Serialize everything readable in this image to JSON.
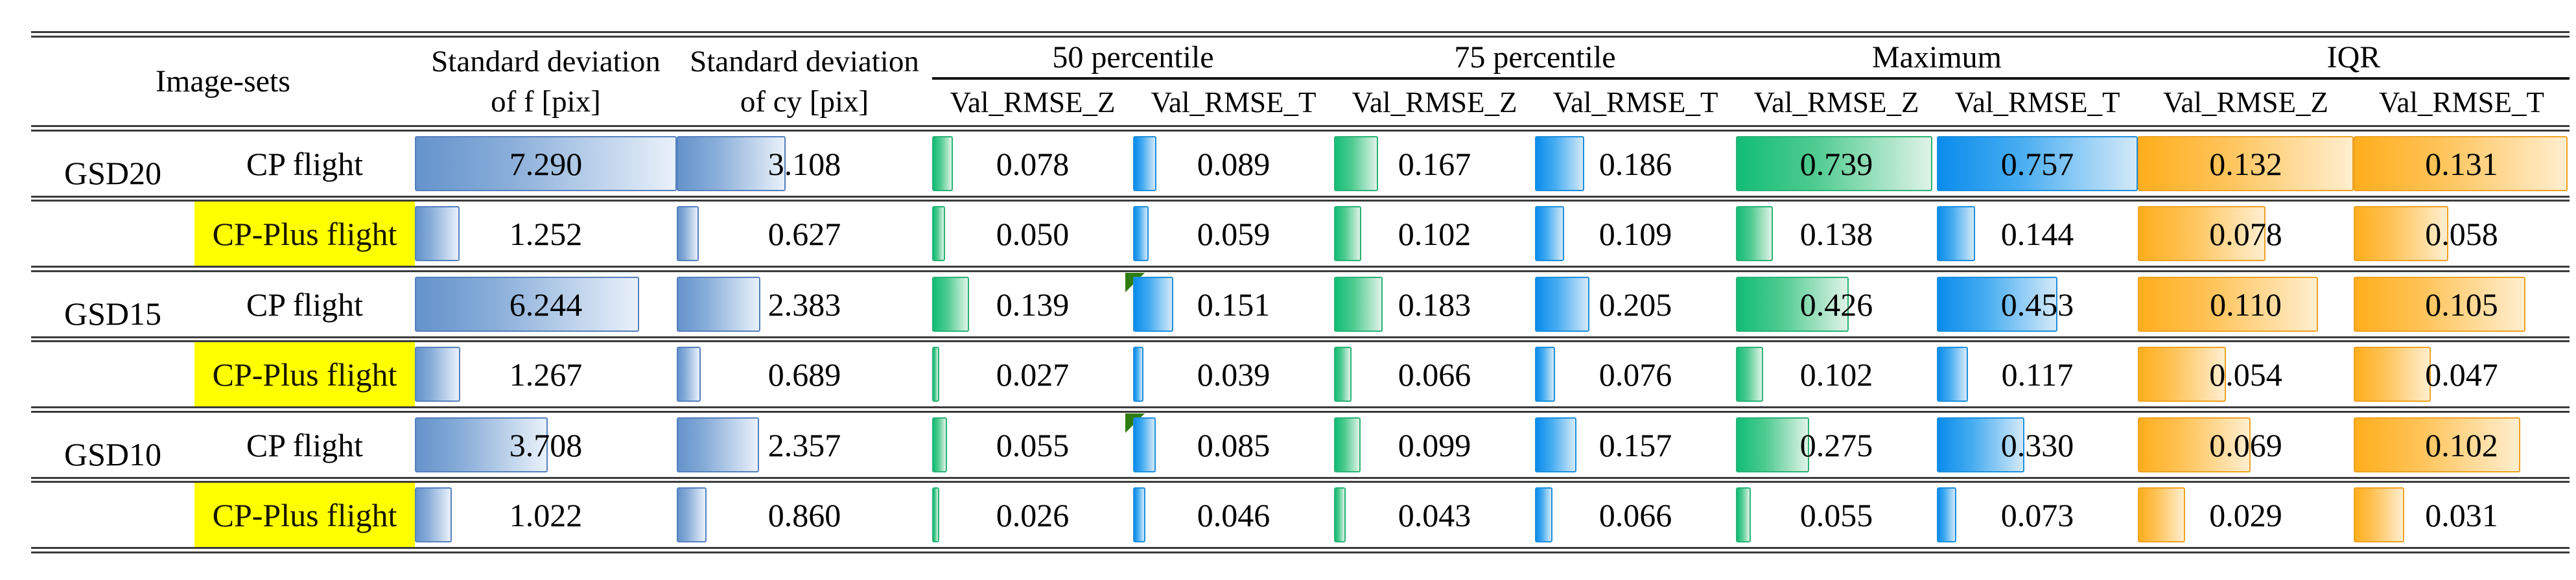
{
  "header": {
    "image_sets": "Image-sets",
    "std_f_line1": "Standard deviation",
    "std_f_line2": "of f [pix]",
    "std_cy_line1": "Standard deviation",
    "std_cy_line2": "of cy [pix]",
    "groups": [
      {
        "label": "50 percentile",
        "sub": [
          "Val_RMSE_Z",
          "Val_RMSE_T"
        ]
      },
      {
        "label": "75 percentile",
        "sub": [
          "Val_RMSE_Z",
          "Val_RMSE_T"
        ]
      },
      {
        "label": "Maximum",
        "sub": [
          "Val_RMSE_Z",
          "Val_RMSE_T"
        ]
      },
      {
        "label": "IQR",
        "sub": [
          "Val_RMSE_Z",
          "Val_RMSE_T"
        ]
      }
    ]
  },
  "colors": {
    "highlight_yellow": "#FFFF00",
    "bar_std_blue": "#6493CB",
    "bar_rmse_z_green": "#12BD77",
    "bar_rmse_t_blue": "#0A8CEC",
    "bar_iqr_orange": "#FFAE1C",
    "error_flag_green": "#2E7D0C",
    "rule_gray": "#3B3B3B"
  },
  "chart_data": {
    "type": "table",
    "column_groups": [
      "Standard deviation of f [pix]",
      "Standard deviation of cy [pix]",
      "50 percentile",
      "75 percentile",
      "Maximum",
      "IQR"
    ],
    "columns": [
      "std_f",
      "std_cy",
      "p50_val_rmse_z",
      "p50_val_rmse_t",
      "p75_val_rmse_z",
      "p75_val_rmse_t",
      "max_val_rmse_z",
      "max_val_rmse_t",
      "iqr_val_rmse_z",
      "iqr_val_rmse_t"
    ],
    "bar_scale_max": {
      "std": 7.29,
      "rmse": 0.757,
      "iqr": 0.132
    },
    "rows": [
      {
        "image_set": "GSD20",
        "flight": "CP flight",
        "highlighted": false,
        "error_flags": [],
        "values": [
          "7.290",
          "3.108",
          "0.078",
          "0.089",
          "0.167",
          "0.186",
          "0.739",
          "0.757",
          "0.132",
          "0.131"
        ]
      },
      {
        "image_set": "",
        "flight": "CP-Plus flight",
        "highlighted": true,
        "error_flags": [],
        "values": [
          "1.252",
          "0.627",
          "0.050",
          "0.059",
          "0.102",
          "0.109",
          "0.138",
          "0.144",
          "0.078",
          "0.058"
        ]
      },
      {
        "image_set": "GSD15",
        "flight": "CP flight",
        "highlighted": false,
        "error_flags": [
          3
        ],
        "values": [
          "6.244",
          "2.383",
          "0.139",
          "0.151",
          "0.183",
          "0.205",
          "0.426",
          "0.453",
          "0.110",
          "0.105"
        ]
      },
      {
        "image_set": "",
        "flight": "CP-Plus flight",
        "highlighted": true,
        "error_flags": [],
        "values": [
          "1.267",
          "0.689",
          "0.027",
          "0.039",
          "0.066",
          "0.076",
          "0.102",
          "0.117",
          "0.054",
          "0.047"
        ]
      },
      {
        "image_set": "GSD10",
        "flight": "CP flight",
        "highlighted": false,
        "error_flags": [
          3
        ],
        "values": [
          "3.708",
          "2.357",
          "0.055",
          "0.085",
          "0.099",
          "0.157",
          "0.275",
          "0.330",
          "0.069",
          "0.102"
        ]
      },
      {
        "image_set": "",
        "flight": "CP-Plus flight",
        "highlighted": true,
        "error_flags": [],
        "values": [
          "1.022",
          "0.860",
          "0.026",
          "0.046",
          "0.043",
          "0.066",
          "0.055",
          "0.073",
          "0.029",
          "0.031"
        ]
      }
    ]
  }
}
